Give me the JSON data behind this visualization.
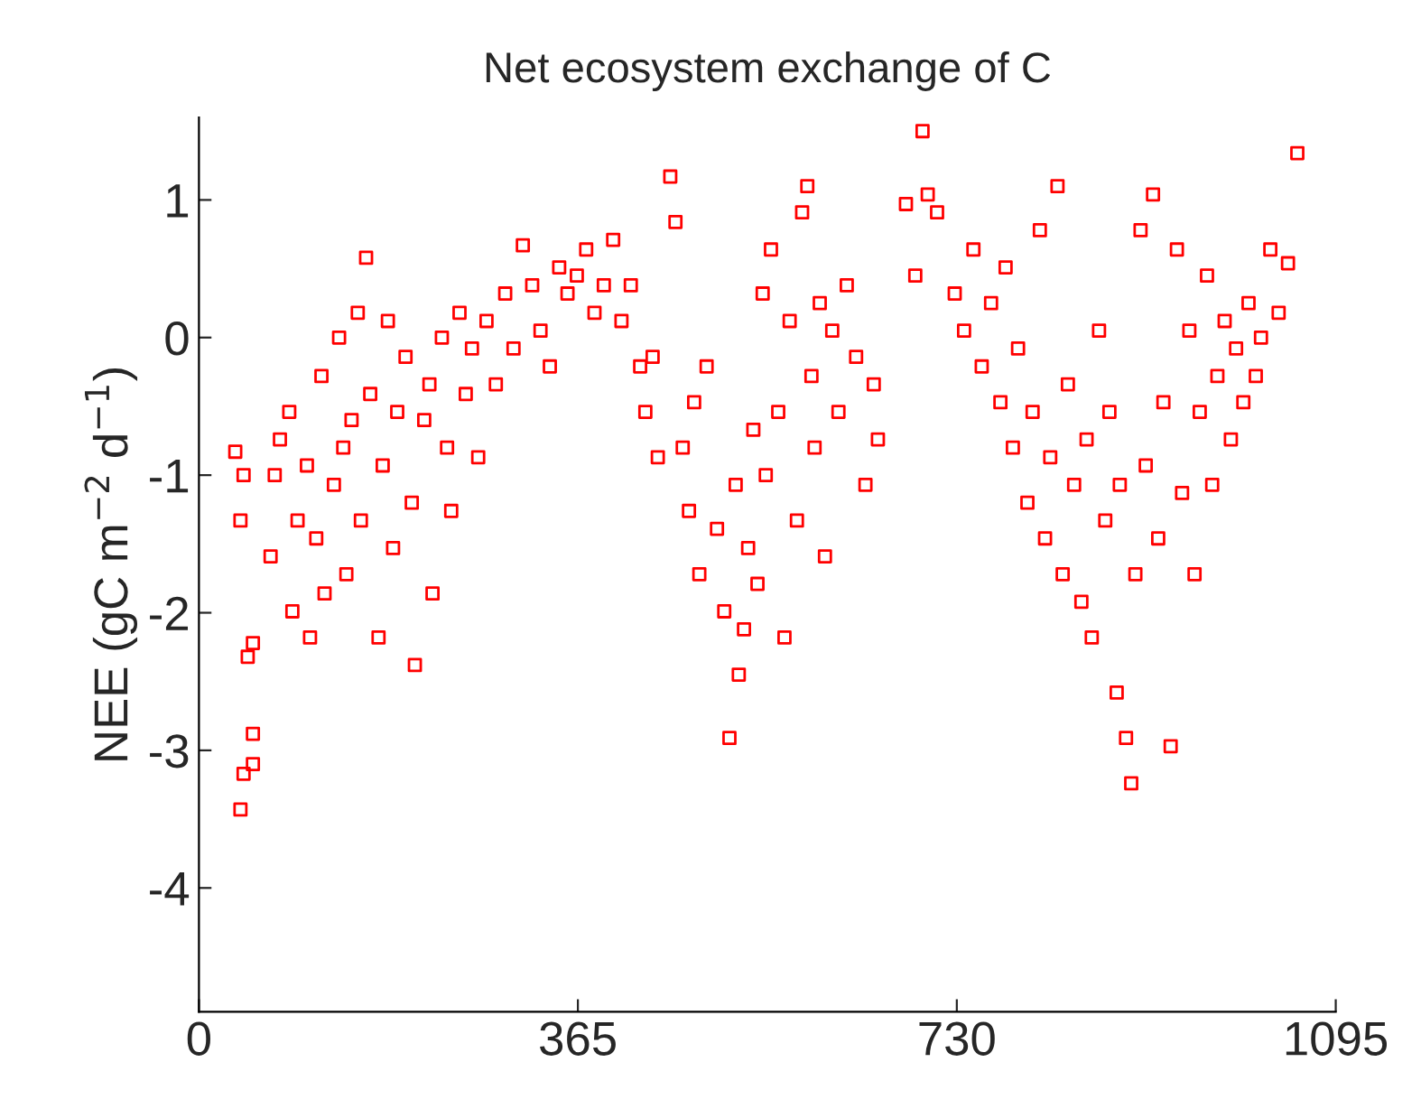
{
  "chart_data": {
    "type": "scatter",
    "title": "Net ecosystem exchange of C",
    "ylabel": "NEE (gC m$^{−2}$ d$^{−1}$)",
    "xlim": [
      0,
      1095
    ],
    "xticks": [
      0,
      365,
      730,
      1095
    ],
    "ylim": [
      -4.9,
      1.6
    ],
    "yticks": [
      -4,
      -3,
      -2,
      -1,
      0,
      1
    ],
    "marker": "square",
    "grid": false,
    "series": [
      {
        "color": "#ff0000",
        "x": [
          35,
          40,
          43,
          40,
          43,
          52,
          52,
          47,
          52,
          69,
          73,
          78,
          87,
          90,
          95,
          104,
          107,
          113,
          118,
          121,
          130,
          135,
          139,
          142,
          147,
          153,
          156,
          161,
          165,
          173,
          177,
          182,
          187,
          191,
          199,
          205,
          208,
          217,
          222,
          225,
          234,
          239,
          243,
          251,
          257,
          263,
          269,
          277,
          286,
          295,
          303,
          312,
          321,
          329,
          338,
          347,
          355,
          364,
          373,
          381,
          390,
          399,
          407,
          416,
          425,
          430,
          437,
          442,
          454,
          459,
          466,
          472,
          477,
          482,
          489,
          499,
          506,
          511,
          517,
          520,
          525,
          529,
          534,
          538,
          543,
          546,
          551,
          558,
          564,
          569,
          576,
          581,
          586,
          590,
          593,
          598,
          603,
          610,
          616,
          624,
          633,
          642,
          650,
          654,
          681,
          690,
          697,
          702,
          711,
          728,
          737,
          746,
          754,
          763,
          772,
          777,
          784,
          789,
          798,
          803,
          810,
          815,
          820,
          827,
          832,
          837,
          843,
          850,
          855,
          860,
          867,
          873,
          877,
          884,
          887,
          893,
          898,
          902,
          907,
          912,
          919,
          924,
          929,
          936,
          942,
          947,
          954,
          959,
          964,
          971,
          976,
          981,
          988,
          994,
          999,
          1006,
          1011,
          1018,
          1023,
          1032,
          1040,
          1049,
          1058
        ],
        "values": [
          -0.83,
          -1.33,
          -1.0,
          -3.43,
          -3.17,
          -3.1,
          -2.88,
          -2.32,
          -2.22,
          -1.59,
          -1.0,
          -0.74,
          -0.54,
          -1.99,
          -1.33,
          -0.93,
          -2.18,
          -1.46,
          -0.28,
          -1.86,
          -1.07,
          0,
          -0.8,
          -1.72,
          -0.6,
          0.18,
          -1.33,
          0.58,
          -0.41,
          -2.18,
          -0.93,
          0.12,
          -1.53,
          -0.54,
          -0.14,
          -1.2,
          -2.38,
          -0.6,
          -0.34,
          -1.86,
          0,
          -0.8,
          -1.26,
          0.18,
          -0.41,
          -0.08,
          -0.87,
          0.12,
          -0.34,
          0.32,
          -0.08,
          0.67,
          0.38,
          0.05,
          -0.21,
          0.51,
          0.32,
          0.45,
          0.64,
          0.18,
          0.38,
          0.71,
          0.12,
          0.38,
          -0.21,
          -0.54,
          -0.14,
          -0.87,
          1.17,
          0.84,
          -0.8,
          -1.26,
          -0.47,
          -1.72,
          -0.21,
          -1.39,
          -1.99,
          -2.91,
          -1.07,
          -2.45,
          -2.12,
          -1.53,
          -0.67,
          -1.79,
          0.32,
          -1.0,
          0.64,
          -0.54,
          -2.18,
          0.12,
          -1.33,
          0.91,
          1.1,
          -0.28,
          -0.8,
          0.25,
          -1.59,
          0.05,
          -0.54,
          0.38,
          -0.14,
          -1.07,
          -0.34,
          -0.74,
          0.97,
          0.45,
          1.5,
          1.04,
          0.91,
          0.32,
          0.05,
          0.64,
          -0.21,
          0.25,
          -0.47,
          0.51,
          -0.8,
          -0.08,
          -1.2,
          -0.54,
          0.78,
          -1.46,
          -0.87,
          1.1,
          -1.72,
          -0.34,
          -1.07,
          -1.92,
          -0.74,
          -2.18,
          0.05,
          -1.33,
          -0.54,
          -2.58,
          -1.07,
          -2.91,
          -3.24,
          -1.72,
          0.78,
          -0.93,
          1.04,
          -1.46,
          -0.47,
          -2.97,
          0.64,
          -1.13,
          0.05,
          -1.72,
          -0.54,
          0.45,
          -1.07,
          -0.28,
          0.12,
          -0.74,
          -0.08,
          -0.47,
          0.25,
          -0.28,
          0,
          0.64,
          0.18,
          0.54,
          1.34
        ]
      }
    ]
  }
}
